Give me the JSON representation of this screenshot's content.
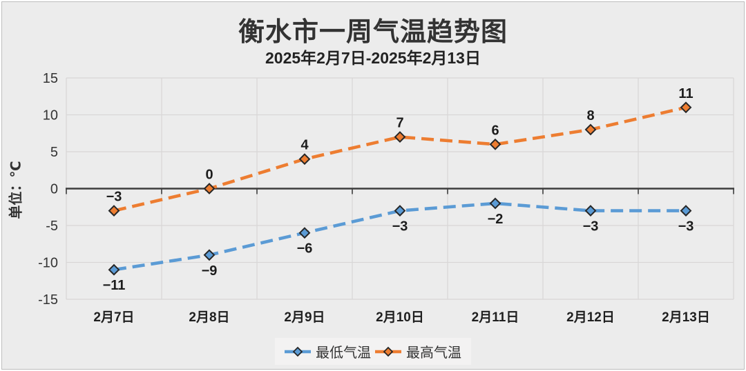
{
  "header": {
    "title": "衡水市一周气温趋势图",
    "subtitle": "2025年2月7日-2025年2月13日"
  },
  "chart_data": {
    "type": "line",
    "title": "衡水市一周气温趋势图",
    "subtitle": "2025年2月7日-2025年2月13日",
    "categories": [
      "2月7日",
      "2月8日",
      "2月9日",
      "2月10日",
      "2月11日",
      "2月12日",
      "2月13日"
    ],
    "series": [
      {
        "id": "min-temp",
        "name": "最低气温",
        "values": [
          -11,
          -9,
          -6,
          -3,
          -2,
          -3,
          -3
        ],
        "color": "#5B9BD5",
        "label_position": "below"
      },
      {
        "id": "max-temp",
        "name": "最高气温",
        "values": [
          -3,
          0,
          4,
          7,
          6,
          8,
          11
        ],
        "color": "#ED7D31",
        "label_position": "above"
      }
    ],
    "xlabel": "",
    "ylabel": "单位：℃",
    "ylim": [
      -15,
      15
    ],
    "yticks": [
      15,
      10,
      5,
      0,
      -5,
      -10,
      -15
    ],
    "grid": true,
    "line_style": "dashed",
    "marker": "diamond",
    "legend_position": "bottom"
  },
  "colors": {
    "background": "#ECECEC",
    "gridline": "#D8D6D6",
    "axis": "#3D3D3D",
    "marker_outline": "#262626",
    "legend_background": "#F3F2F2",
    "min_series": "#5B9BD5",
    "max_series": "#ED7D31"
  }
}
